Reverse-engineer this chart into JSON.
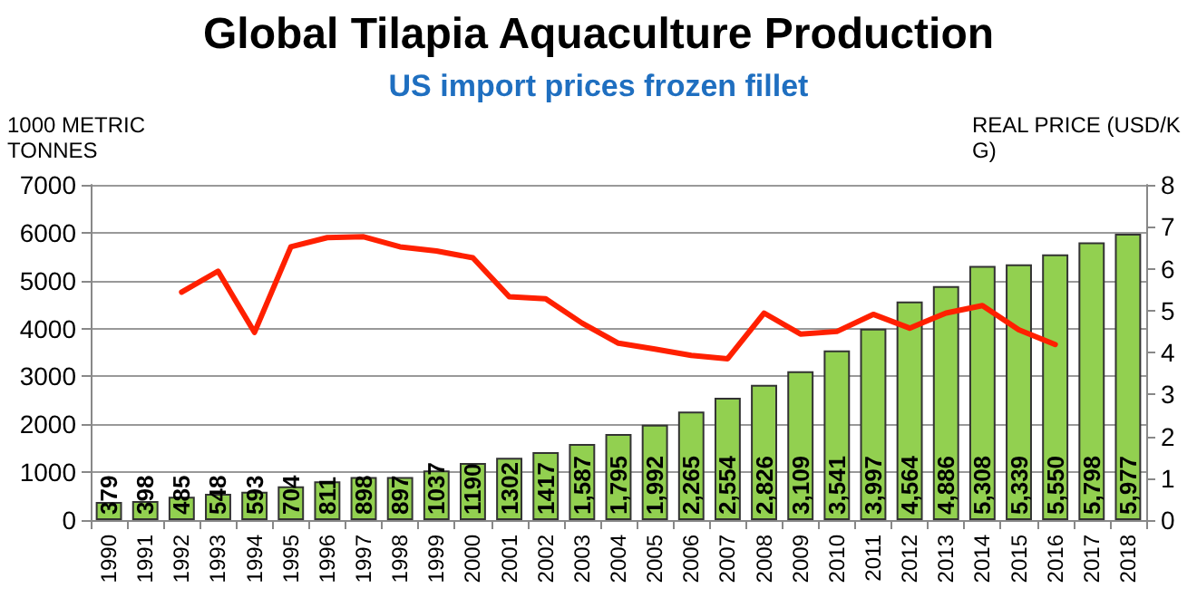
{
  "chart_data": {
    "type": "bar",
    "title": "Global Tilapia Aquaculture Production",
    "subtitle": "US import prices frozen fillet",
    "ylabel": "1000 METRIC TONNES",
    "y2label": "REAL PRICE (USD/KG)",
    "categories": [
      "1990",
      "1991",
      "1992",
      "1993",
      "1994",
      "1995",
      "1996",
      "1997",
      "1998",
      "1999",
      "2000",
      "2001",
      "2002",
      "2003",
      "2004",
      "2005",
      "2006",
      "2007",
      "2008",
      "2009",
      "2010",
      "2011",
      "2012",
      "2013",
      "2014",
      "2015",
      "2016",
      "2017",
      "2018"
    ],
    "series": [
      {
        "color": "#92d050",
        "values": [
          379,
          398,
          485,
          548,
          593,
          704,
          811,
          898,
          897,
          1037,
          1190,
          1302,
          1417,
          1587,
          1795,
          1992,
          2265,
          2554,
          2826,
          3109,
          3541,
          3997,
          4564,
          4886,
          5308,
          5339,
          5550,
          5798,
          5977
        ],
        "value_labels": [
          "379",
          "398",
          "485",
          "548",
          "593",
          "704",
          "811",
          "898",
          "897",
          "1037",
          "1190",
          "1302",
          "1417",
          "1,587",
          "1,795",
          "1,992",
          "2,265",
          "2,554",
          "2,826",
          "3,109",
          "3,541",
          "3,997",
          "4,564",
          "4,886",
          "5,308",
          "5,339",
          "5,550",
          "5,798",
          "5,977"
        ]
      },
      {
        "type": "line",
        "axis": "y2",
        "color": "#ff2000",
        "values": [
          null,
          null,
          5.44,
          5.94,
          4.48,
          6.52,
          6.74,
          6.76,
          6.52,
          6.42,
          6.26,
          5.33,
          5.28,
          4.7,
          4.22,
          4.08,
          3.93,
          3.85,
          4.94,
          4.44,
          4.5,
          4.91,
          4.58,
          4.94,
          5.12,
          4.54,
          4.19,
          null,
          null
        ]
      }
    ],
    "ylim": [
      0,
      7000
    ],
    "yticks": [
      0,
      1000,
      2000,
      3000,
      4000,
      5000,
      6000,
      7000
    ],
    "y2lim": [
      0,
      8
    ],
    "y2ticks": [
      0,
      1,
      2,
      3,
      4,
      5,
      6,
      7,
      8
    ],
    "grid": "y",
    "marker": "none",
    "line_style": "solid"
  }
}
